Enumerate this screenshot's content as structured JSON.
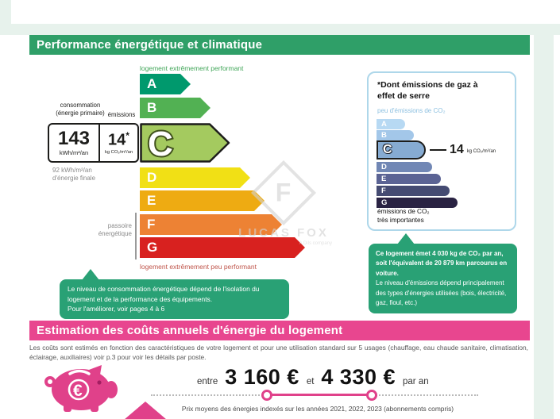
{
  "theme": {
    "green": "#2f9f68",
    "callout": "#29a175",
    "pink": "#e8468f",
    "pink-accent": "#e0418a",
    "mint": "#e7f2ec",
    "label-green": "#3fa557",
    "label-red": "#bf544a",
    "gray": "#8a8a8a"
  },
  "energy": {
    "title": "Performance énergétique et climatique",
    "scale_top_label": "logement extrêmement performant",
    "scale_bottom_label": "logement extrêmement peu performant",
    "consumption_header": "consommation\n(énergie primaire)",
    "emissions_header": "émissions",
    "primary_value": "143",
    "primary_unit": "kWh/m²/an",
    "emission_value": "14",
    "emission_star": "*",
    "emission_unit": "kg CO₂/m²/an",
    "final_energy": "92 kWh/m²/an\nd'énergie finale",
    "passoire_label": "passoire\nénergétique",
    "current_class": "C",
    "classes": [
      {
        "letter": "A",
        "color": "#00996d"
      },
      {
        "letter": "B",
        "color": "#52b153"
      },
      {
        "letter": "C",
        "color": "#a4ca5f"
      },
      {
        "letter": "D",
        "color": "#f1e015"
      },
      {
        "letter": "E",
        "color": "#eeab12"
      },
      {
        "letter": "F",
        "color": "#ed8234"
      },
      {
        "letter": "G",
        "color": "#d8211f"
      }
    ],
    "note": "Le niveau de consommation énergétique dépend de l'isolation du\nlogement et de la performance des équipements.\nPour l'améliorer, voir pages 4 à 6"
  },
  "ghg": {
    "title": "*Dont émissions de gaz à effet de serre",
    "low_label": "peu d'émissions de CO₂",
    "high_label": "émissions de CO₂\ntrès importantes",
    "value": "14",
    "unit": "kg CO₂/m²/an",
    "current_class": "C",
    "classes": [
      {
        "letter": "A",
        "color": "#b7d9f3"
      },
      {
        "letter": "B",
        "color": "#a3c7e9"
      },
      {
        "letter": "C",
        "color": "#86abd2"
      },
      {
        "letter": "D",
        "color": "#7187b5"
      },
      {
        "letter": "E",
        "color": "#5b6394"
      },
      {
        "letter": "F",
        "color": "#454b72"
      },
      {
        "letter": "G",
        "color": "#2a2343"
      }
    ],
    "note_bold": "Ce logement émet 4 030 kg de CO₂ par an, soit l'équivalent de 20 879 km parcourus en voiture.",
    "note_rest": "Le niveau d'émissions dépend principalement des types d'énergies utilisées (bois, électricité, gaz, fioul, etc.)"
  },
  "costs": {
    "title": "Estimation des coûts annuels d'énergie du logement",
    "description": "Les coûts sont estimés en fonction des caractéristiques de votre logement et pour une utilisation standard sur 5 usages (chauffage, eau chaude sanitaire, climatisation, éclairage, auxiliaires) voir p.3 pour voir les détails par poste.",
    "between_label": "entre",
    "min_cost": "3 160 €",
    "and_label": "et",
    "max_cost": "4 330 €",
    "per_label": "par an",
    "price_note": "Prix moyens des énergies indexés sur les années 2021, 2022, 2023 (abonnements compris)"
  },
  "watermark": {
    "monogram": "F",
    "brand": "LUCAS FOX",
    "sub": "A Dils company"
  }
}
